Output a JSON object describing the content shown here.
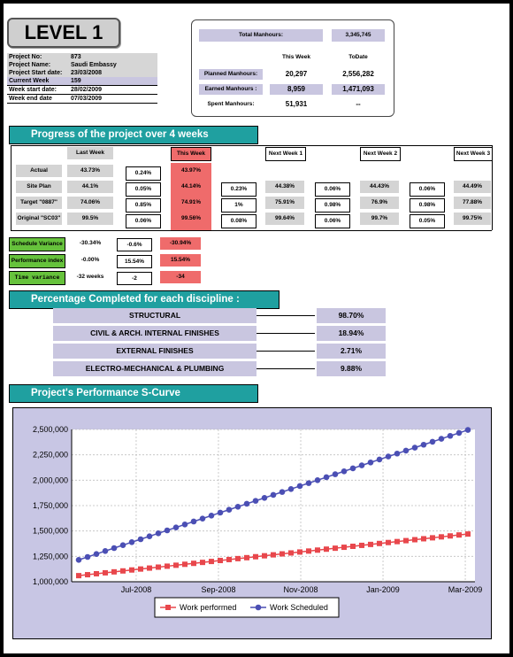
{
  "level": "LEVEL 1",
  "project_info": [
    {
      "label": "Project No:",
      "value": "873"
    },
    {
      "label": "Project Name:",
      "value": "Saudi Embassy"
    },
    {
      "label": "Project Start date:",
      "value": "23/03/2008"
    },
    {
      "label": "Current Week",
      "value": "159"
    },
    {
      "label": "Week start date:",
      "value": "28/02/2009"
    },
    {
      "label": "Week end date",
      "value": "07/03/2009"
    }
  ],
  "summary": {
    "total_label": "Total Manhours:",
    "total_value": "3,345,745",
    "col_this_week": "This Week",
    "col_todate": "ToDate",
    "rows": [
      {
        "label": "Planned Manhours:",
        "this_week": "20,297",
        "todate": "2,556,282"
      },
      {
        "label": "Earned Manhours :",
        "this_week": "8,959",
        "todate": "1,471,093"
      },
      {
        "label": "Spent Manhours:",
        "this_week": "51,931",
        "todate": "--"
      }
    ]
  },
  "progress": {
    "banner": "Progress of the project over 4 weeks",
    "headers": {
      "last_week": "Last Week",
      "this_week": "This Week",
      "next1": "Next Week 1",
      "next2": "Next Week 2",
      "next3": "Next Week 3"
    },
    "rows": [
      {
        "label": "Actual",
        "last": "43.73%",
        "d1": "0.24%",
        "this": "43.97%",
        "d2": "",
        "n1": "",
        "d3": "",
        "n2": "",
        "d4": "",
        "n3": ""
      },
      {
        "label": "Site Plan",
        "last": "44.1%",
        "d1": "0.05%",
        "this": "44.14%",
        "d2": "0.23%",
        "n1": "44.38%",
        "d3": "0.06%",
        "n2": "44.43%",
        "d4": "0.06%",
        "n3": "44.49%"
      },
      {
        "label": "Target \"0887\"",
        "last": "74.06%",
        "d1": "0.85%",
        "this": "74.91%",
        "d2": "1%",
        "n1": "75.91%",
        "d3": "0.98%",
        "n2": "76.9%",
        "d4": "0.98%",
        "n3": "77.88%"
      },
      {
        "label": "Original \"SC03\"",
        "last": "99.5%",
        "d1": "0.06%",
        "this": "99.56%",
        "d2": "0.08%",
        "n1": "99.64%",
        "d3": "0.06%",
        "n2": "99.7%",
        "d4": "0.05%",
        "n3": "99.75%"
      }
    ],
    "variance": [
      {
        "label": "Schedule Variance",
        "last": "-30.34%",
        "diff": "-0.6%",
        "this": "-30.94%"
      },
      {
        "label": "Performance index",
        "last": "-0.00%",
        "diff": "15.54%",
        "this": "15.54%"
      },
      {
        "label": "Time variance",
        "last": "-32 weeks",
        "diff": "-2",
        "this": "-34"
      }
    ]
  },
  "disciplines": {
    "banner": "Percentage Completed for each discipline :",
    "items": [
      {
        "name": "STRUCTURAL",
        "value": "98.70%"
      },
      {
        "name": "CIVIL & ARCH. INTERNAL FINISHES",
        "value": "18.94%"
      },
      {
        "name": "EXTERNAL FINISHES",
        "value": "2.71%"
      },
      {
        "name": "ELECTRO-MECHANICAL & PLUMBING",
        "value": "9.88%"
      }
    ]
  },
  "scurve_banner": "Project's Performance S-Curve",
  "chart_data": {
    "type": "line",
    "x_ticks": [
      "Jul-2008",
      "Sep-2008",
      "Nov-2008",
      "Jan-2009",
      "Mar-2009"
    ],
    "y_ticks": [
      "1,000,000",
      "1,250,000",
      "1,500,000",
      "1,750,000",
      "2,000,000",
      "2,250,000",
      "2,500,000"
    ],
    "ylim": [
      1000000,
      2500000
    ],
    "series": [
      {
        "name": "Work performed",
        "color": "#e8474c",
        "start": 1060000,
        "end": 1470000,
        "points": 45
      },
      {
        "name": "Work Scheduled",
        "color": "#4b4fb4",
        "start": 1215000,
        "end": 2495000,
        "points": 45
      }
    ],
    "grid": true,
    "legend": "bottom"
  }
}
